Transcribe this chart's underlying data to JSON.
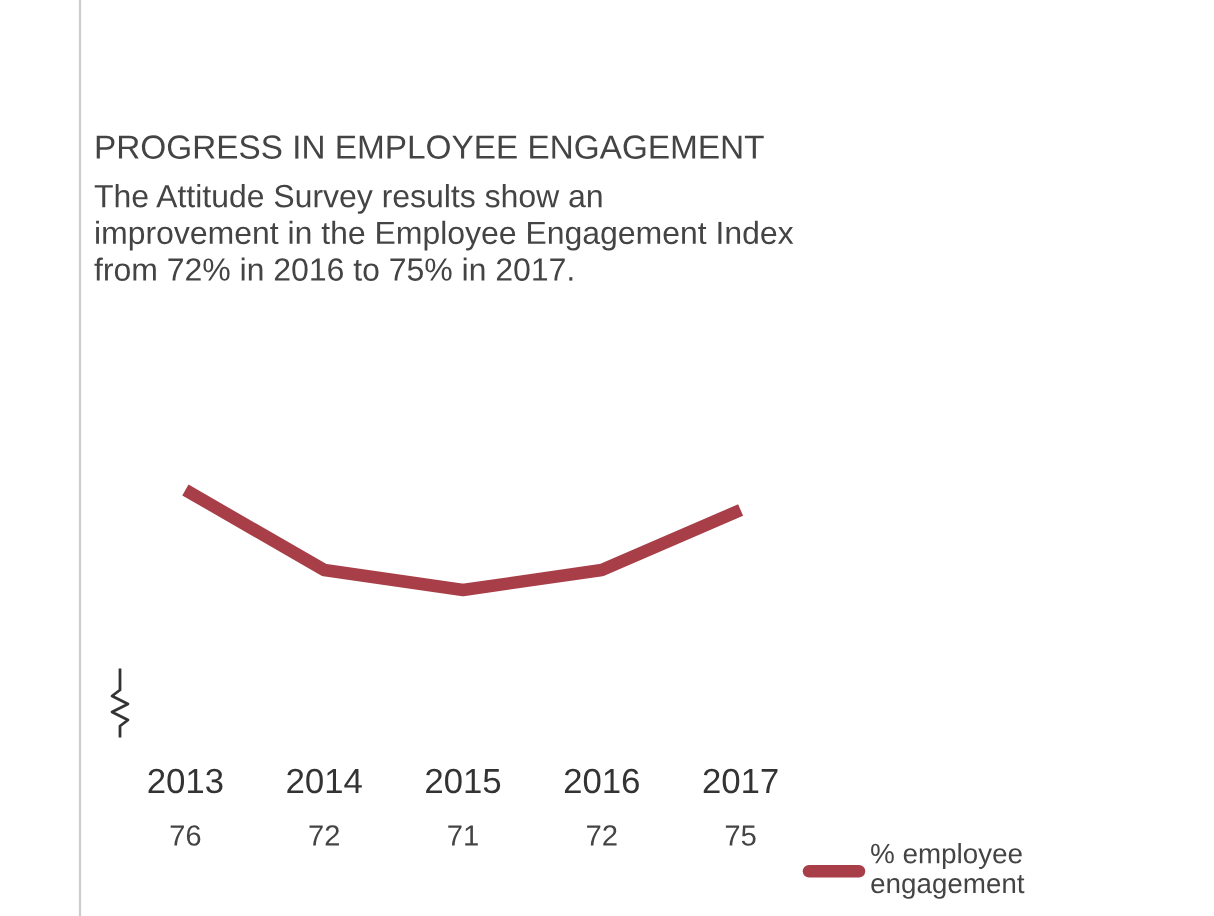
{
  "chart_data": {
    "type": "line",
    "title": "PROGRESS IN EMPLOYEE ENGAGEMENT",
    "subtitle": "The Attitude Survey results show an\nimprovement in the Employee Engagement Index\nfrom 72% in 2016 to 75% in 2017.",
    "categories": [
      "2013",
      "2014",
      "2015",
      "2016",
      "2017"
    ],
    "series": [
      {
        "name": "% employee\nengagement",
        "color": "#a83f48",
        "values": [
          76,
          72,
          71,
          72,
          75
        ]
      }
    ],
    "data_labels": true,
    "legend": "bottom right",
    "marker": "none",
    "line_style": "solid"
  }
}
